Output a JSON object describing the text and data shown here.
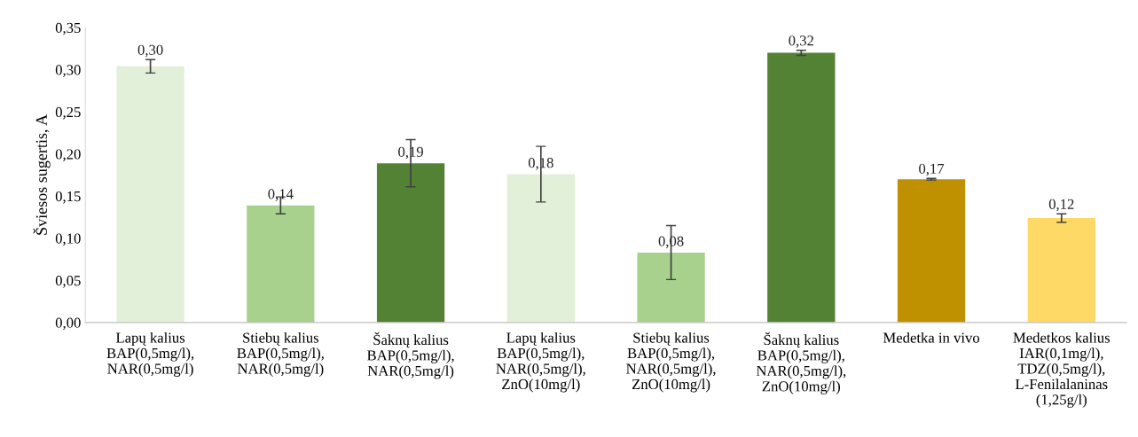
{
  "chart_data": {
    "type": "bar",
    "ylabel": "Šviesos sugertis, A",
    "categories": [
      "Lapų kalius\nBAP(0,5mg/l),\nNAR(0,5mg/l)",
      "Stiebų kalius\nBAP(0,5mg/l),\nNAR(0,5mg/l)",
      "Šaknų kalius\nBAP(0,5mg/l),\nNAR(0,5mg/l)",
      "Lapų kalius\nBAP(0,5mg/l),\nNAR(0,5mg/l),\nZnO(10mg/l)",
      "Stiebų kalius\nBAP(0,5mg/l),\nNAR(0,5mg/l),\nZnO(10mg/l)",
      "Šaknų kalius\nBAP(0,5mg/l),\nNAR(0,5mg/l),\nZnO(10mg/l)",
      "Medetka in vivo",
      "Medetkos kalius\nIAR(0,1mg/l),\nTDZ(0,5mg/l),\nL-Fenilalaninas\n(1,25g/l)"
    ],
    "values": [
      0.304,
      0.139,
      0.189,
      0.176,
      0.083,
      0.32,
      0.17,
      0.124
    ],
    "errors": [
      0.008,
      0.01,
      0.028,
      0.033,
      0.032,
      0.003,
      0.001,
      0.005
    ],
    "value_labels": [
      "0,30",
      "0,14",
      "0,19",
      "0,18",
      "0,08",
      "0,32",
      "0,17",
      "0,12"
    ],
    "colors": [
      "#e2efd9",
      "#a9d18e",
      "#548235",
      "#e2efd9",
      "#a9d18e",
      "#548235",
      "#bf9000",
      "#ffd966"
    ],
    "ylim": [
      0,
      0.35
    ],
    "yticks": [
      {
        "value": 0,
        "label": "0,00"
      },
      {
        "value": 0.05,
        "label": "0,05"
      },
      {
        "value": 0.1,
        "label": "0,10"
      },
      {
        "value": 0.15,
        "label": "0,15"
      },
      {
        "value": 0.2,
        "label": "0,20"
      },
      {
        "value": 0.25,
        "label": "0,25"
      },
      {
        "value": 0.3,
        "label": "0,30"
      },
      {
        "value": 0.35,
        "label": "0,35"
      }
    ],
    "grid": false,
    "legend": false
  }
}
